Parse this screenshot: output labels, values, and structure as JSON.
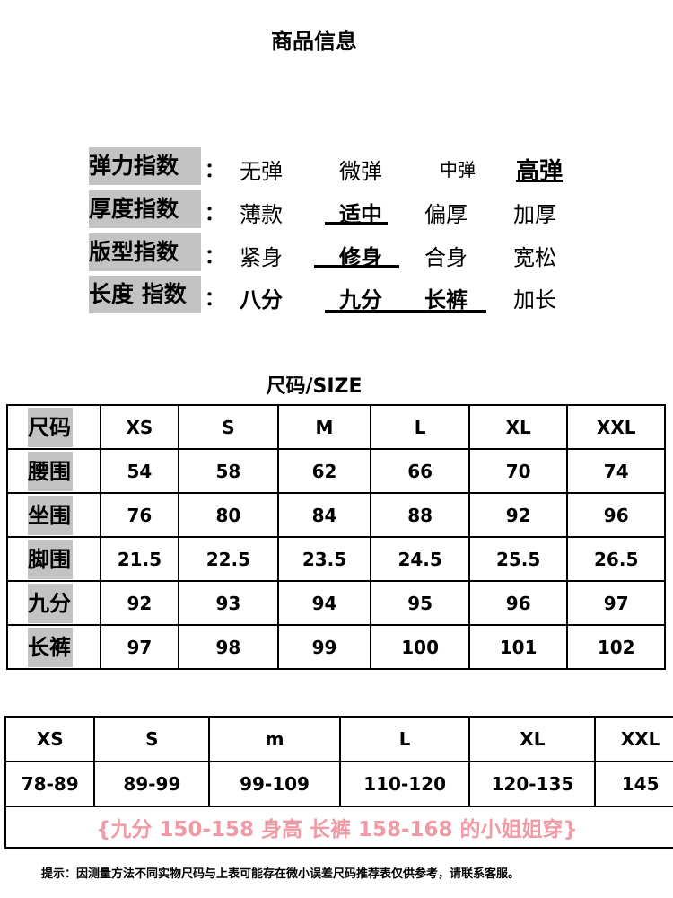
{
  "title": "商品信息",
  "indices": [
    {
      "label": "弹力指数",
      "colon": "：",
      "options": [
        "无弹",
        "微弹",
        "中弹",
        "高弹"
      ],
      "selected": [
        "高弹"
      ]
    },
    {
      "label": "厚度指数",
      "colon": "：",
      "options": [
        "薄款",
        "适中",
        "偏厚",
        "加厚"
      ],
      "selected": [
        "适中"
      ]
    },
    {
      "label": "版型指数",
      "colon": "：",
      "options": [
        "紧身",
        "修身",
        "合身",
        "宽松"
      ],
      "selected": [
        "修身"
      ]
    },
    {
      "label": "长度 指数",
      "colon": "：",
      "options": [
        "八分",
        "九分",
        "长裤",
        "加长"
      ],
      "selected": [
        "九分",
        "长裤"
      ]
    }
  ],
  "size_title": "尺码/SIZE",
  "size_table": {
    "header": [
      "尺码",
      "XS",
      "S",
      "M",
      "L",
      "XL",
      "XXL"
    ],
    "rows": [
      [
        "腰围",
        "54",
        "58",
        "62",
        "66",
        "70",
        "74"
      ],
      [
        "坐围",
        "76",
        "80",
        "84",
        "88",
        "92",
        "96"
      ],
      [
        "脚围",
        "21.5",
        "22.5",
        "23.5",
        "24.5",
        "25.5",
        "26.5"
      ],
      [
        "九分",
        "92",
        "93",
        "94",
        "95",
        "96",
        "97"
      ],
      [
        "长裤",
        "97",
        "98",
        "99",
        "100",
        "101",
        "102"
      ]
    ]
  },
  "height_table": {
    "header": [
      "XS",
      "S",
      "m",
      "L",
      "XL",
      "XXL"
    ],
    "values": [
      "78-89",
      "89-99",
      "99-109",
      "110-120",
      "120-135",
      "145"
    ],
    "note": "{九分 150-158 身高 长裤 158-168 的小姐姐穿}",
    "note_color": "#f09aa6"
  },
  "footer_note": "提示：因测量方法不同实物尺码与上表可能存在微小误差尺码推荐表仅供参考，请联系客服。"
}
